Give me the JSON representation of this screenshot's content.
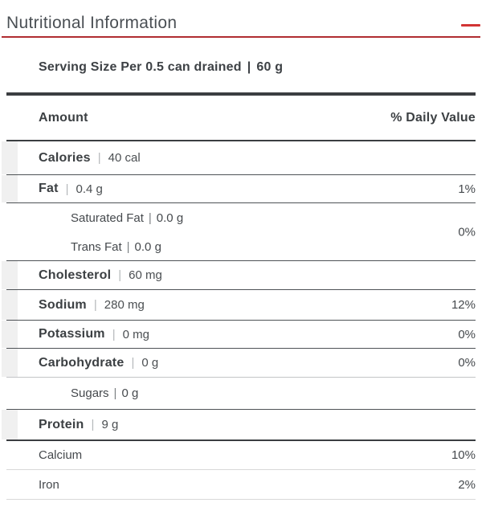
{
  "colors": {
    "accent_red": "#d23434",
    "rule_red": "#b02d31",
    "bar_dark": "#3b3e41",
    "strip_gray": "#f0f0f0"
  },
  "header": {
    "title": "Nutritional Information"
  },
  "serving": {
    "label": "Serving Size Per 0.5 can drained",
    "separator": "|",
    "value": "60 g"
  },
  "table": {
    "pipe": "|",
    "columns": {
      "amount": "Amount",
      "daily_value": "% Daily Value"
    },
    "rows": [
      {
        "label": "Calories",
        "value": "40 cal",
        "daily_value": ""
      },
      {
        "label": "Fat",
        "value": "0.4 g",
        "daily_value": "1%"
      },
      {
        "daily_value": "0%",
        "items": [
          {
            "label": "Saturated Fat",
            "value": "0.0 g"
          },
          {
            "label": "Trans Fat",
            "value": "0.0 g"
          }
        ]
      },
      {
        "label": "Cholesterol",
        "value": "60 mg",
        "daily_value": ""
      },
      {
        "label": "Sodium",
        "value": "280 mg",
        "daily_value": "12%"
      },
      {
        "label": "Potassium",
        "value": "0 mg",
        "daily_value": "0%"
      },
      {
        "label": "Carbohydrate",
        "value": "0 g",
        "daily_value": "0%"
      },
      {
        "label": "Sugars",
        "value": "0 g",
        "daily_value": ""
      },
      {
        "label": "Protein",
        "value": "9 g",
        "daily_value": ""
      },
      {
        "label": "Calcium",
        "daily_value": "10%"
      },
      {
        "label": "Iron",
        "daily_value": "2%"
      }
    ]
  }
}
